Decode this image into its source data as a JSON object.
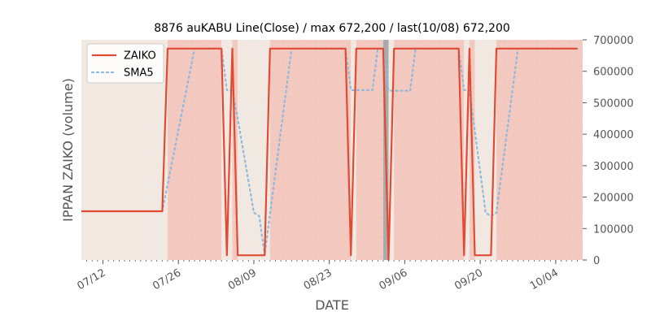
{
  "colors": {
    "zaiko": "#e24a33",
    "sma5": "#8eb9dd",
    "background": "#e5e5e5",
    "band_red": "#f3c8bf",
    "band_beige": "#f1e9e1",
    "gray_marker": "#aaaaaa"
  },
  "chart_data": {
    "type": "line",
    "title": "8876 auKABU Line(Close) / max 672,200 / last(10/08) 672,200",
    "xlabel": "DATE",
    "ylabel": "IPPAN ZAIKO (volume)",
    "ylim": [
      0,
      700000
    ],
    "y_ticks": [
      0,
      100000,
      200000,
      300000,
      400000,
      500000,
      600000,
      700000
    ],
    "y_axis_side": "right",
    "x_ticks": [
      "07/12",
      "07/26",
      "08/09",
      "08/23",
      "09/06",
      "09/20",
      "10/04"
    ],
    "x_tick_dates": [
      "2021-07-12",
      "2021-07-26",
      "2021-08-09",
      "2021-08-23",
      "2021-09-06",
      "2021-09-20",
      "2021-10-04"
    ],
    "x_range": [
      "2021-07-08",
      "2021-10-09"
    ],
    "legend": {
      "position": "top-left",
      "entries": [
        "ZAIKO",
        "SMA5"
      ]
    },
    "grid": false,
    "bands": [
      {
        "start": "2021-07-08",
        "end": "2021-07-24",
        "kind": "beige"
      },
      {
        "start": "2021-07-24",
        "end": "2021-08-03",
        "kind": "red"
      },
      {
        "start": "2021-08-03",
        "end": "2021-08-05",
        "kind": "beige"
      },
      {
        "start": "2021-08-05",
        "end": "2021-08-06",
        "kind": "red"
      },
      {
        "start": "2021-08-06",
        "end": "2021-08-12",
        "kind": "beige"
      },
      {
        "start": "2021-08-12",
        "end": "2021-08-27",
        "kind": "red"
      },
      {
        "start": "2021-08-27",
        "end": "2021-08-28",
        "kind": "beige"
      },
      {
        "start": "2021-08-28",
        "end": "2021-09-02",
        "kind": "red"
      },
      {
        "start": "2021-09-02",
        "end": "2021-09-03",
        "kind": "gray"
      },
      {
        "start": "2021-09-03",
        "end": "2021-09-04",
        "kind": "beige"
      },
      {
        "start": "2021-09-04",
        "end": "2021-09-17",
        "kind": "red"
      },
      {
        "start": "2021-09-17",
        "end": "2021-09-18",
        "kind": "beige"
      },
      {
        "start": "2021-09-18",
        "end": "2021-09-19",
        "kind": "red"
      },
      {
        "start": "2021-09-19",
        "end": "2021-09-23",
        "kind": "beige"
      },
      {
        "start": "2021-09-23",
        "end": "2021-10-09",
        "kind": "red"
      }
    ],
    "series": [
      {
        "name": "ZAIKO",
        "style": "solid",
        "x": [
          "2021-07-08",
          "2021-07-23",
          "2021-07-24",
          "2021-08-03",
          "2021-08-04",
          "2021-08-05",
          "2021-08-06",
          "2021-08-11",
          "2021-08-12",
          "2021-08-26",
          "2021-08-27",
          "2021-08-28",
          "2021-09-02",
          "2021-09-03",
          "2021-09-04",
          "2021-09-16",
          "2021-09-17",
          "2021-09-18",
          "2021-09-19",
          "2021-09-22",
          "2021-09-23",
          "2021-10-08"
        ],
        "values": [
          155000,
          155000,
          672200,
          672200,
          15000,
          672200,
          15000,
          15000,
          672200,
          672200,
          15000,
          672200,
          672200,
          0,
          672200,
          672200,
          15000,
          672200,
          15000,
          15000,
          672200,
          672200
        ]
      },
      {
        "name": "SMA5",
        "style": "dotted",
        "x": [
          "2021-07-22",
          "2021-07-23",
          "2021-07-29",
          "2021-08-03",
          "2021-08-04",
          "2021-08-05",
          "2021-08-06",
          "2021-08-09",
          "2021-08-10",
          "2021-08-11",
          "2021-08-16",
          "2021-08-26",
          "2021-08-27",
          "2021-08-31",
          "2021-09-01",
          "2021-09-02",
          "2021-09-03",
          "2021-09-04",
          "2021-09-07",
          "2021-09-08",
          "2021-09-16",
          "2021-09-17",
          "2021-09-18",
          "2021-09-21",
          "2021-09-22",
          "2021-09-23",
          "2021-09-27",
          "2021-10-08"
        ],
        "values": [
          155000,
          155000,
          672200,
          672200,
          540000,
          540000,
          450000,
          150000,
          140000,
          15000,
          672200,
          672200,
          540000,
          540000,
          672200,
          672200,
          538000,
          538000,
          538000,
          672200,
          672200,
          540000,
          540000,
          150000,
          140000,
          150000,
          672200,
          672200
        ]
      }
    ]
  }
}
